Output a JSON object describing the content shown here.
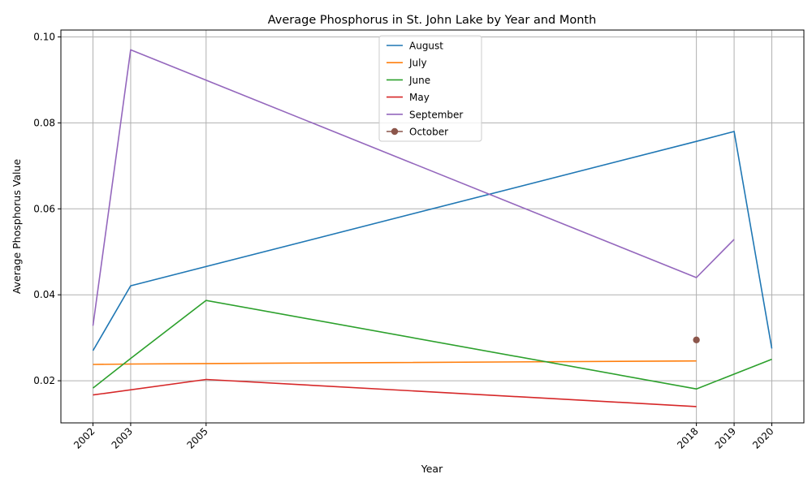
{
  "chart_data": {
    "type": "line",
    "title": "Average Phosphorus in St. John Lake by Year and Month",
    "xlabel": "Year",
    "ylabel": "Average Phosphorus Value",
    "xlim": [
      2001.15,
      2020.85
    ],
    "ylim": [
      0.0102,
      0.1016
    ],
    "x_ticks": [
      2002,
      2003,
      2005,
      2018,
      2019,
      2020
    ],
    "y_ticks": [
      0.02,
      0.04,
      0.06,
      0.08,
      0.1
    ],
    "y_tick_labels": [
      "0.02",
      "0.04",
      "0.06",
      "0.08",
      "0.10"
    ],
    "grid": true,
    "legend_position": "top-center",
    "series": [
      {
        "name": "August",
        "color": "#1f77b4",
        "marker": false,
        "points": [
          [
            2002,
            0.027
          ],
          [
            2003,
            0.0421
          ],
          [
            2018,
            0.0757
          ],
          [
            2019,
            0.078
          ],
          [
            2020,
            0.0275
          ]
        ]
      },
      {
        "name": "July",
        "color": "#ff7f0e",
        "marker": false,
        "points": [
          [
            2002,
            0.0238
          ],
          [
            2003,
            0.0239
          ],
          [
            2005,
            0.024
          ],
          [
            2018,
            0.0246
          ]
        ]
      },
      {
        "name": "June",
        "color": "#2ca02c",
        "marker": false,
        "points": [
          [
            2002,
            0.0183
          ],
          [
            2003,
            0.0252
          ],
          [
            2005,
            0.0387
          ],
          [
            2018,
            0.0181
          ],
          [
            2020,
            0.025
          ]
        ]
      },
      {
        "name": "May",
        "color": "#d62728",
        "marker": false,
        "points": [
          [
            2002,
            0.0167
          ],
          [
            2005,
            0.0203
          ],
          [
            2018,
            0.014
          ]
        ]
      },
      {
        "name": "September",
        "color": "#9467bd",
        "marker": false,
        "points": [
          [
            2002,
            0.0328
          ],
          [
            2003,
            0.097
          ],
          [
            2018,
            0.044
          ],
          [
            2019,
            0.0529
          ]
        ]
      },
      {
        "name": "October",
        "color": "#8c564b",
        "marker": true,
        "points": [
          [
            2018,
            0.0295
          ]
        ]
      }
    ]
  }
}
